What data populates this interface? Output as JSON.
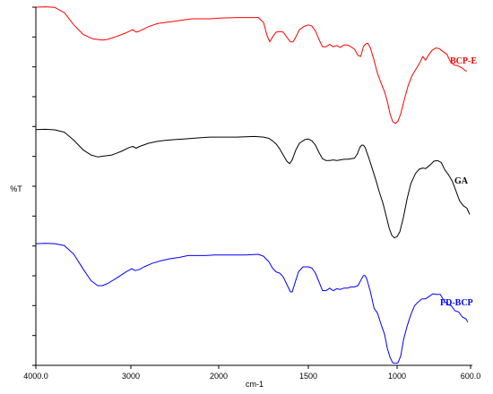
{
  "chart_data": {
    "type": "line",
    "xlabel": "cm-1",
    "ylabel": "%T",
    "xlim": [
      4000.0,
      600.0
    ],
    "x_ticks": [
      "4000.0",
      "3000",
      "2000",
      "1500",
      "1000",
      "600.0"
    ],
    "x_tick_values": [
      4000,
      3000,
      2000,
      1500,
      1000,
      600
    ],
    "grid": false,
    "y_tick_count": 13,
    "series": [
      {
        "name": "BCP-E",
        "color": "#ff0000",
        "points": [
          [
            4000,
            0.985
          ],
          [
            3900,
            0.988
          ],
          [
            3800,
            0.983
          ],
          [
            3700,
            0.94
          ],
          [
            3600,
            0.84
          ],
          [
            3500,
            0.76
          ],
          [
            3400,
            0.725
          ],
          [
            3300,
            0.715
          ],
          [
            3250,
            0.72
          ],
          [
            3150,
            0.745
          ],
          [
            3050,
            0.775
          ],
          [
            2980,
            0.8
          ],
          [
            2940,
            0.78
          ],
          [
            2900,
            0.79
          ],
          [
            2800,
            0.825
          ],
          [
            2700,
            0.85
          ],
          [
            2600,
            0.86
          ],
          [
            2500,
            0.87
          ],
          [
            2400,
            0.88
          ],
          [
            2300,
            0.89
          ],
          [
            2200,
            0.89
          ],
          [
            2100,
            0.89
          ],
          [
            2000,
            0.895
          ],
          [
            1900,
            0.9
          ],
          [
            1800,
            0.9
          ],
          [
            1780,
            0.9
          ],
          [
            1750,
            0.86
          ],
          [
            1730,
            0.75
          ],
          [
            1715,
            0.7
          ],
          [
            1700,
            0.74
          ],
          [
            1680,
            0.78
          ],
          [
            1660,
            0.785
          ],
          [
            1640,
            0.78
          ],
          [
            1620,
            0.74
          ],
          [
            1600,
            0.7
          ],
          [
            1585,
            0.7
          ],
          [
            1570,
            0.74
          ],
          [
            1550,
            0.8
          ],
          [
            1520,
            0.83
          ],
          [
            1500,
            0.84
          ],
          [
            1480,
            0.83
          ],
          [
            1460,
            0.79
          ],
          [
            1440,
            0.72
          ],
          [
            1420,
            0.66
          ],
          [
            1400,
            0.66
          ],
          [
            1380,
            0.68
          ],
          [
            1360,
            0.66
          ],
          [
            1340,
            0.67
          ],
          [
            1320,
            0.655
          ],
          [
            1300,
            0.675
          ],
          [
            1280,
            0.675
          ],
          [
            1260,
            0.66
          ],
          [
            1240,
            0.64
          ],
          [
            1220,
            0.59
          ],
          [
            1205,
            0.58
          ],
          [
            1190,
            0.66
          ],
          [
            1180,
            0.68
          ],
          [
            1165,
            0.69
          ],
          [
            1150,
            0.65
          ],
          [
            1130,
            0.55
          ],
          [
            1110,
            0.44
          ],
          [
            1090,
            0.36
          ],
          [
            1070,
            0.29
          ],
          [
            1055,
            0.21
          ],
          [
            1040,
            0.11
          ],
          [
            1025,
            0.045
          ],
          [
            1010,
            0.03
          ],
          [
            995,
            0.05
          ],
          [
            980,
            0.11
          ],
          [
            960,
            0.23
          ],
          [
            940,
            0.34
          ],
          [
            920,
            0.42
          ],
          [
            900,
            0.47
          ],
          [
            880,
            0.52
          ],
          [
            860,
            0.58
          ],
          [
            845,
            0.55
          ],
          [
            830,
            0.59
          ],
          [
            810,
            0.63
          ],
          [
            790,
            0.65
          ],
          [
            770,
            0.645
          ],
          [
            750,
            0.62
          ],
          [
            730,
            0.6
          ],
          [
            710,
            0.54
          ],
          [
            690,
            0.51
          ],
          [
            670,
            0.505
          ],
          [
            650,
            0.49
          ],
          [
            630,
            0.465
          ],
          [
            620,
            0.46
          ]
        ]
      },
      {
        "name": "GA",
        "color": "#000000",
        "points": [
          [
            4000,
            0.965
          ],
          [
            3900,
            0.968
          ],
          [
            3800,
            0.964
          ],
          [
            3700,
            0.945
          ],
          [
            3600,
            0.88
          ],
          [
            3500,
            0.8
          ],
          [
            3420,
            0.76
          ],
          [
            3350,
            0.745
          ],
          [
            3300,
            0.75
          ],
          [
            3200,
            0.76
          ],
          [
            3100,
            0.79
          ],
          [
            3020,
            0.82
          ],
          [
            2980,
            0.83
          ],
          [
            2940,
            0.815
          ],
          [
            2900,
            0.83
          ],
          [
            2800,
            0.855
          ],
          [
            2700,
            0.87
          ],
          [
            2600,
            0.88
          ],
          [
            2500,
            0.885
          ],
          [
            2400,
            0.89
          ],
          [
            2300,
            0.895
          ],
          [
            2200,
            0.9
          ],
          [
            2100,
            0.905
          ],
          [
            2000,
            0.905
          ],
          [
            1900,
            0.905
          ],
          [
            1800,
            0.91
          ],
          [
            1750,
            0.905
          ],
          [
            1720,
            0.895
          ],
          [
            1700,
            0.875
          ],
          [
            1680,
            0.85
          ],
          [
            1660,
            0.81
          ],
          [
            1640,
            0.76
          ],
          [
            1620,
            0.71
          ],
          [
            1605,
            0.69
          ],
          [
            1590,
            0.72
          ],
          [
            1570,
            0.8
          ],
          [
            1550,
            0.855
          ],
          [
            1520,
            0.885
          ],
          [
            1500,
            0.89
          ],
          [
            1480,
            0.875
          ],
          [
            1460,
            0.84
          ],
          [
            1440,
            0.78
          ],
          [
            1420,
            0.73
          ],
          [
            1400,
            0.715
          ],
          [
            1380,
            0.715
          ],
          [
            1360,
            0.72
          ],
          [
            1340,
            0.715
          ],
          [
            1320,
            0.72
          ],
          [
            1300,
            0.725
          ],
          [
            1280,
            0.725
          ],
          [
            1260,
            0.73
          ],
          [
            1240,
            0.735
          ],
          [
            1225,
            0.765
          ],
          [
            1210,
            0.82
          ],
          [
            1200,
            0.84
          ],
          [
            1190,
            0.84
          ],
          [
            1180,
            0.82
          ],
          [
            1160,
            0.74
          ],
          [
            1140,
            0.65
          ],
          [
            1120,
            0.56
          ],
          [
            1100,
            0.46
          ],
          [
            1080,
            0.37
          ],
          [
            1060,
            0.26
          ],
          [
            1045,
            0.17
          ],
          [
            1030,
            0.11
          ],
          [
            1015,
            0.09
          ],
          [
            1000,
            0.1
          ],
          [
            985,
            0.14
          ],
          [
            965,
            0.26
          ],
          [
            945,
            0.41
          ],
          [
            925,
            0.53
          ],
          [
            900,
            0.61
          ],
          [
            880,
            0.645
          ],
          [
            860,
            0.655
          ],
          [
            845,
            0.65
          ],
          [
            820,
            0.68
          ],
          [
            800,
            0.71
          ],
          [
            780,
            0.715
          ],
          [
            760,
            0.7
          ],
          [
            740,
            0.64
          ],
          [
            720,
            0.6
          ],
          [
            700,
            0.55
          ],
          [
            680,
            0.47
          ],
          [
            660,
            0.39
          ],
          [
            640,
            0.35
          ],
          [
            620,
            0.33
          ],
          [
            605,
            0.28
          ]
        ]
      },
      {
        "name": "FD-BCP",
        "color": "#0000ff",
        "points": [
          [
            4000,
            0.985
          ],
          [
            3900,
            0.988
          ],
          [
            3800,
            0.985
          ],
          [
            3700,
            0.97
          ],
          [
            3600,
            0.9
          ],
          [
            3500,
            0.78
          ],
          [
            3420,
            0.69
          ],
          [
            3350,
            0.65
          ],
          [
            3300,
            0.65
          ],
          [
            3250,
            0.665
          ],
          [
            3150,
            0.71
          ],
          [
            3050,
            0.76
          ],
          [
            2990,
            0.785
          ],
          [
            2950,
            0.77
          ],
          [
            2900,
            0.78
          ],
          [
            2850,
            0.8
          ],
          [
            2750,
            0.83
          ],
          [
            2650,
            0.85
          ],
          [
            2550,
            0.865
          ],
          [
            2450,
            0.875
          ],
          [
            2350,
            0.89
          ],
          [
            2250,
            0.89
          ],
          [
            2150,
            0.89
          ],
          [
            2050,
            0.895
          ],
          [
            1950,
            0.895
          ],
          [
            1850,
            0.895
          ],
          [
            1780,
            0.9
          ],
          [
            1750,
            0.885
          ],
          [
            1720,
            0.84
          ],
          [
            1700,
            0.79
          ],
          [
            1680,
            0.76
          ],
          [
            1660,
            0.75
          ],
          [
            1640,
            0.72
          ],
          [
            1620,
            0.66
          ],
          [
            1600,
            0.6
          ],
          [
            1590,
            0.6
          ],
          [
            1575,
            0.67
          ],
          [
            1555,
            0.76
          ],
          [
            1530,
            0.8
          ],
          [
            1500,
            0.8
          ],
          [
            1480,
            0.79
          ],
          [
            1460,
            0.75
          ],
          [
            1440,
            0.68
          ],
          [
            1420,
            0.61
          ],
          [
            1400,
            0.61
          ],
          [
            1380,
            0.63
          ],
          [
            1360,
            0.61
          ],
          [
            1340,
            0.625
          ],
          [
            1320,
            0.62
          ],
          [
            1300,
            0.63
          ],
          [
            1280,
            0.63
          ],
          [
            1260,
            0.64
          ],
          [
            1240,
            0.64
          ],
          [
            1220,
            0.65
          ],
          [
            1200,
            0.705
          ],
          [
            1190,
            0.73
          ],
          [
            1180,
            0.73
          ],
          [
            1170,
            0.7
          ],
          [
            1150,
            0.6
          ],
          [
            1130,
            0.47
          ],
          [
            1110,
            0.43
          ],
          [
            1090,
            0.34
          ],
          [
            1070,
            0.26
          ],
          [
            1055,
            0.15
          ],
          [
            1040,
            0.08
          ],
          [
            1025,
            0.035
          ],
          [
            1010,
            0.03
          ],
          [
            995,
            0.035
          ],
          [
            980,
            0.09
          ],
          [
            965,
            0.22
          ],
          [
            945,
            0.33
          ],
          [
            925,
            0.42
          ],
          [
            905,
            0.49
          ],
          [
            885,
            0.52
          ],
          [
            865,
            0.545
          ],
          [
            845,
            0.545
          ],
          [
            825,
            0.565
          ],
          [
            805,
            0.585
          ],
          [
            785,
            0.58
          ],
          [
            765,
            0.58
          ],
          [
            745,
            0.53
          ],
          [
            725,
            0.5
          ],
          [
            705,
            0.49
          ],
          [
            685,
            0.45
          ],
          [
            665,
            0.44
          ],
          [
            645,
            0.4
          ],
          [
            625,
            0.385
          ],
          [
            615,
            0.36
          ]
        ]
      }
    ]
  }
}
